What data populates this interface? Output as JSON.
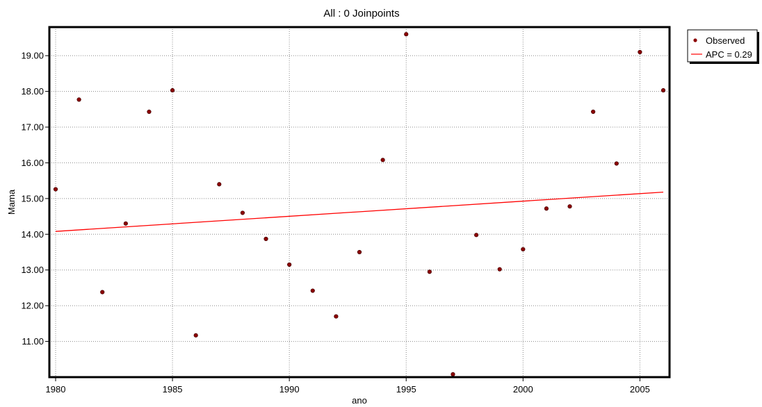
{
  "chart_data": {
    "type": "scatter",
    "title": "All : 0 Joinpoints",
    "xlabel": "ano",
    "ylabel": "Mama",
    "xlim": [
      1980,
      2006
    ],
    "ylim": [
      10,
      19.8
    ],
    "x_ticks": [
      1980,
      1985,
      1990,
      1995,
      2000,
      2005
    ],
    "y_ticks": [
      11,
      12,
      13,
      14,
      15,
      16,
      17,
      18,
      19
    ],
    "y_tick_labels": [
      "11.00",
      "12.00",
      "13.00",
      "14.00",
      "15.00",
      "16.00",
      "17.00",
      "18.00",
      "19.00"
    ],
    "grid": true,
    "legend_position": "top-right",
    "series": [
      {
        "name": "Observed",
        "kind": "points",
        "color": "#8b0000",
        "x": [
          1980,
          1981,
          1982,
          1983,
          1984,
          1985,
          1986,
          1987,
          1988,
          1989,
          1990,
          1991,
          1992,
          1993,
          1994,
          1995,
          1996,
          1997,
          1998,
          1999,
          2000,
          2001,
          2002,
          2003,
          2004,
          2005,
          2006
        ],
        "y": [
          15.26,
          17.77,
          12.38,
          14.3,
          17.43,
          18.03,
          11.17,
          15.4,
          14.6,
          13.87,
          13.15,
          12.42,
          11.7,
          13.5,
          16.08,
          19.6,
          12.95,
          10.08,
          13.98,
          13.02,
          13.58,
          14.72,
          14.78,
          17.43,
          15.98,
          19.1,
          18.03
        ]
      },
      {
        "name": "APC = 0.29",
        "kind": "line",
        "color": "#ff0000",
        "x": [
          1980,
          2006
        ],
        "y": [
          14.08,
          15.18
        ]
      }
    ]
  }
}
